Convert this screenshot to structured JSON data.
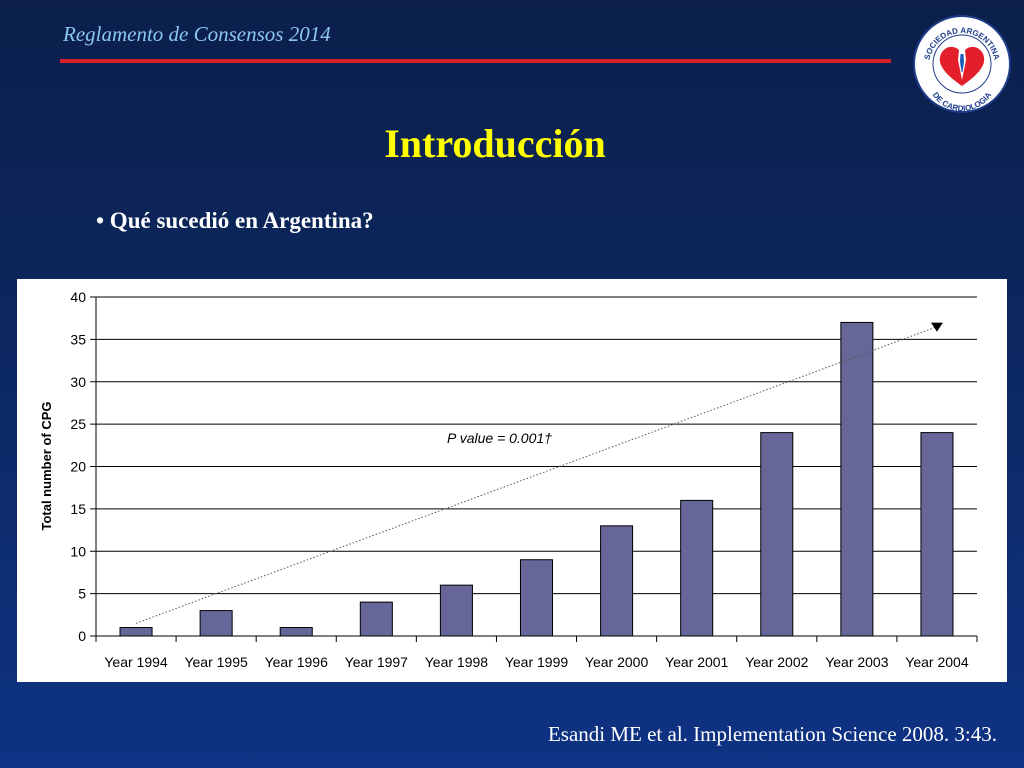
{
  "header": {
    "title": "Reglamento de Consensos 2014",
    "rule_color": "#d4202a"
  },
  "logo": {
    "icon": "sociedad-argentina-de-cardiologia-seal",
    "text_top": "SOCIEDAD ARGENTINA",
    "text_bottom": "DE CARDIOLOGIA"
  },
  "slide": {
    "title": "Introducción",
    "bullet": "• Qué sucedió en Argentina?"
  },
  "citation": "Esandi ME et al. Implementation Science 2008. 3:43.",
  "chart_data": {
    "type": "bar",
    "title": "",
    "xlabel": "",
    "ylabel": "Total number of CPG",
    "categories": [
      "Year 1994",
      "Year 1995",
      "Year 1996",
      "Year 1997",
      "Year 1998",
      "Year 1999",
      "Year 2000",
      "Year 2001",
      "Year 2002",
      "Year 2003",
      "Year 2004"
    ],
    "values": [
      1,
      3,
      1,
      4,
      6,
      9,
      13,
      16,
      24,
      37,
      24
    ],
    "ylim": [
      0,
      40
    ],
    "yticks": [
      0,
      5,
      10,
      15,
      20,
      25,
      30,
      35,
      40
    ],
    "grid": true,
    "bar_color": "#666699",
    "trendline": {
      "from": [
        "Year 1994",
        1.5
      ],
      "to": [
        "Year 2004",
        36.5
      ],
      "style": "dotted",
      "arrow": true
    },
    "annotation": "P value = 0.001†"
  }
}
